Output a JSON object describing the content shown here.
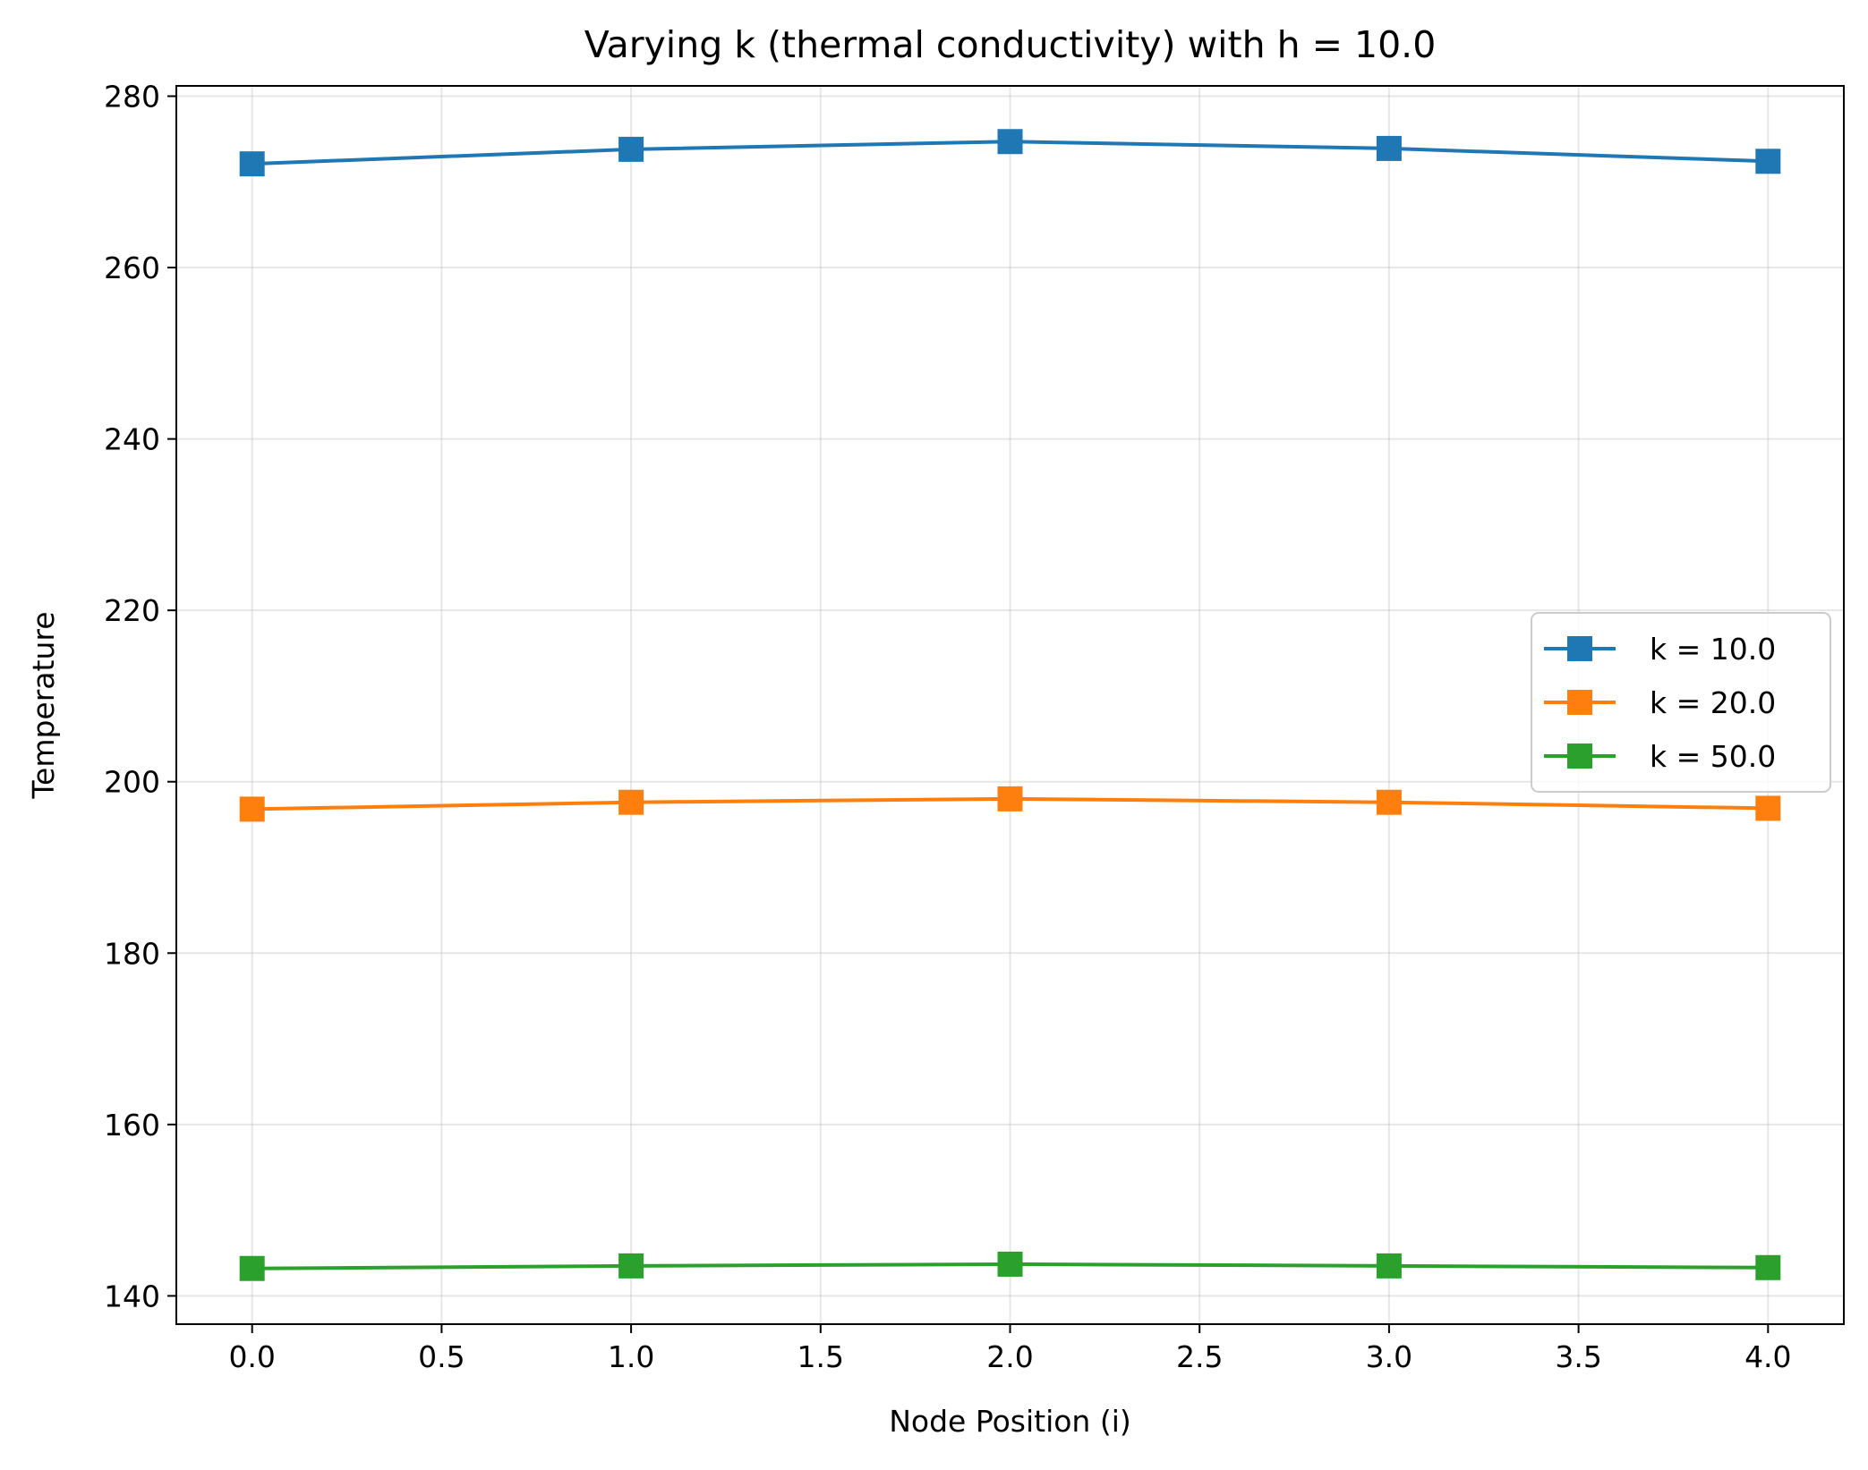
{
  "chart_data": {
    "type": "line",
    "title": "Varying k (thermal conductivity) with h = 10.0",
    "xlabel": "Node Position (i)",
    "ylabel": "Temperature",
    "xlim": [
      -0.2,
      4.2
    ],
    "ylim": [
      136.7,
      281.2
    ],
    "xticks": [
      0.0,
      0.5,
      1.0,
      1.5,
      2.0,
      2.5,
      3.0,
      3.5,
      4.0
    ],
    "xtick_labels": [
      "0.0",
      "0.5",
      "1.0",
      "1.5",
      "2.0",
      "2.5",
      "3.0",
      "3.5",
      "4.0"
    ],
    "yticks": [
      140,
      160,
      180,
      200,
      220,
      240,
      260,
      280
    ],
    "ytick_labels": [
      "140",
      "160",
      "180",
      "200",
      "220",
      "240",
      "260",
      "280"
    ],
    "grid": true,
    "legend_position": "center-right",
    "marker": "square",
    "x": [
      0,
      1,
      2,
      3,
      4
    ],
    "series": [
      {
        "name": "k = 10.0",
        "color": "#1f77b4",
        "values": [
          272.1,
          273.8,
          274.7,
          273.9,
          272.4
        ]
      },
      {
        "name": "k = 20.0",
        "color": "#ff7f0e",
        "values": [
          196.8,
          197.6,
          198.0,
          197.6,
          196.9
        ]
      },
      {
        "name": "k = 50.0",
        "color": "#2ca02c",
        "values": [
          143.2,
          143.5,
          143.7,
          143.5,
          143.3
        ]
      }
    ]
  }
}
